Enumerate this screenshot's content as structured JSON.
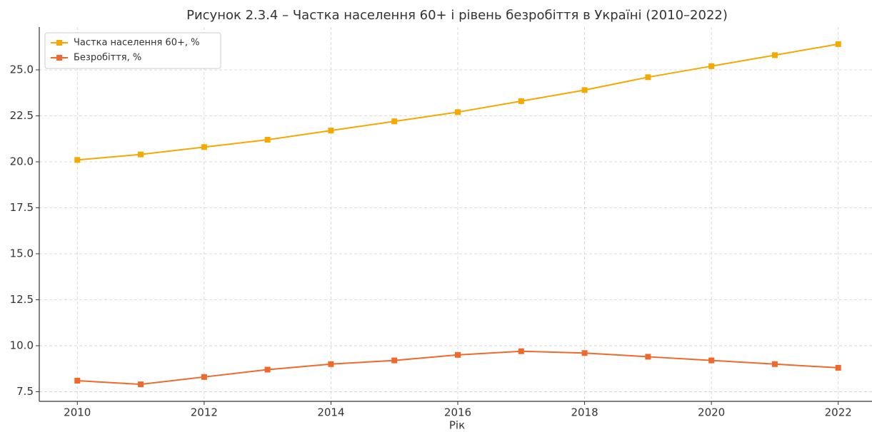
{
  "chart_data": {
    "type": "line",
    "title": "Рисунок 2.3.4 – Частка населення 60+ і рівень безробіття в Україні (2010–2022)",
    "x_label": "Рік",
    "x": [
      2010,
      2011,
      2012,
      2013,
      2014,
      2015,
      2016,
      2017,
      2018,
      2019,
      2020,
      2021,
      2022
    ],
    "series": [
      {
        "name": "Частка населення 60+, %",
        "color": "#f5a800",
        "values": [
          20.1,
          20.4,
          20.8,
          21.2,
          21.7,
          22.2,
          22.7,
          23.3,
          23.9,
          24.6,
          25.2,
          25.8,
          26.4
        ]
      },
      {
        "name": "Безробіття, %",
        "color": "#f0692a",
        "values": [
          8.1,
          7.9,
          8.3,
          8.7,
          9.0,
          9.2,
          9.5,
          9.7,
          9.6,
          9.4,
          9.2,
          9.0,
          8.8
        ]
      }
    ],
    "xlim": [
      2009.4,
      2022.6
    ],
    "xticks": [
      2010,
      2012,
      2014,
      2016,
      2018,
      2020,
      2022
    ],
    "ylim": [
      6.975,
      27.325
    ],
    "yticks": [
      7.5,
      {
        "value": 10,
        "label": "10.0"
      },
      12.5,
      {
        "value": 15,
        "label": "15.0"
      },
      17.5,
      {
        "value": 20,
        "label": "20.0"
      },
      22.5,
      {
        "value": 25,
        "label": "25.0"
      }
    ],
    "grid": true,
    "legend": "upper left"
  }
}
